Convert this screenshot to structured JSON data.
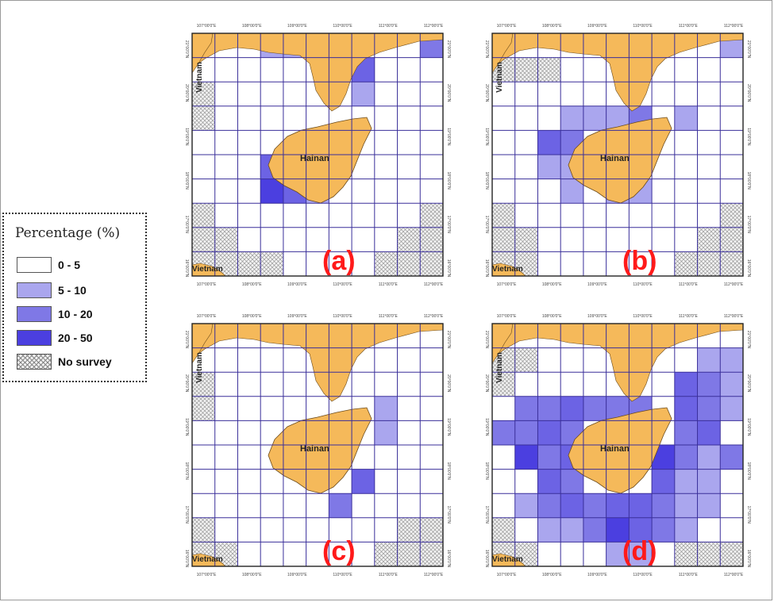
{
  "legend": {
    "title": "Percentage (%)",
    "items": [
      {
        "label": "0  -  5",
        "color": "#ffffff",
        "pattern": false
      },
      {
        "label": "5  - 10",
        "color": "#aaa6ee",
        "pattern": false
      },
      {
        "label": "10 - 20",
        "color": "#7f78e6",
        "pattern": false
      },
      {
        "label": "20 - 50",
        "color": "#4b3fe0",
        "pattern": false
      },
      {
        "label": "No survey",
        "color": "#ffffff",
        "pattern": true
      }
    ]
  },
  "colors": {
    "land": "#f5b95a",
    "grid_line": "#3a2f9a",
    "label_red": "#ff1a1a"
  },
  "place_labels": {
    "hainan": "Hainan",
    "vietnam": "Vietnam"
  },
  "tick_labels": {
    "top": [
      "107°00'0\"E",
      "108°00'0\"E",
      "109°00'0\"E",
      "110°00'0\"E",
      "111°00'0\"E",
      "112°00'0\"E"
    ],
    "side": [
      "21°00'0\"N",
      "20°00'0\"N",
      "19°00'0\"N",
      "18°00'0\"N",
      "17°00'0\"N",
      "16°00'0\"N"
    ]
  },
  "grid": {
    "rows": 10,
    "cols": 11
  },
  "panels": [
    {
      "label": "(a)",
      "cells": [
        {
          "r": 0,
          "c": 3,
          "v": 1
        },
        {
          "r": 0,
          "c": 4,
          "v": 1
        },
        {
          "r": 0,
          "c": 10,
          "v": 2
        },
        {
          "r": 1,
          "c": 7,
          "v": 3
        },
        {
          "r": 2,
          "c": 7,
          "v": 1
        },
        {
          "r": 5,
          "c": 3,
          "v": 3
        },
        {
          "r": 6,
          "c": 3,
          "v": 4
        },
        {
          "r": 6,
          "c": 4,
          "v": 3
        },
        {
          "r": 6,
          "c": 5,
          "v": 1
        },
        {
          "r": 2,
          "c": 0,
          "v": 5
        },
        {
          "r": 3,
          "c": 0,
          "v": 5
        },
        {
          "r": 7,
          "c": 0,
          "v": 5
        },
        {
          "r": 8,
          "c": 0,
          "v": 5
        },
        {
          "r": 9,
          "c": 0,
          "v": 5
        },
        {
          "r": 8,
          "c": 1,
          "v": 5
        },
        {
          "r": 9,
          "c": 1,
          "v": 5
        },
        {
          "r": 9,
          "c": 2,
          "v": 5
        },
        {
          "r": 9,
          "c": 3,
          "v": 5
        },
        {
          "r": 9,
          "c": 8,
          "v": 5
        },
        {
          "r": 8,
          "c": 9,
          "v": 5
        },
        {
          "r": 9,
          "c": 9,
          "v": 5
        },
        {
          "r": 7,
          "c": 10,
          "v": 5
        },
        {
          "r": 8,
          "c": 10,
          "v": 5
        },
        {
          "r": 9,
          "c": 10,
          "v": 5
        }
      ]
    },
    {
      "label": "(b)",
      "cells": [
        {
          "r": 0,
          "c": 10,
          "v": 1
        },
        {
          "r": 3,
          "c": 3,
          "v": 1
        },
        {
          "r": 3,
          "c": 4,
          "v": 1
        },
        {
          "r": 3,
          "c": 5,
          "v": 1
        },
        {
          "r": 4,
          "c": 2,
          "v": 3
        },
        {
          "r": 4,
          "c": 3,
          "v": 2
        },
        {
          "r": 5,
          "c": 2,
          "v": 1
        },
        {
          "r": 5,
          "c": 3,
          "v": 1
        },
        {
          "r": 6,
          "c": 3,
          "v": 1
        },
        {
          "r": 6,
          "c": 5,
          "v": 1
        },
        {
          "r": 6,
          "c": 6,
          "v": 1
        },
        {
          "r": 3,
          "c": 8,
          "v": 1
        },
        {
          "r": 3,
          "c": 6,
          "v": 2
        },
        {
          "r": 1,
          "c": 0,
          "v": 5
        },
        {
          "r": 1,
          "c": 1,
          "v": 5
        },
        {
          "r": 1,
          "c": 2,
          "v": 5
        },
        {
          "r": 7,
          "c": 0,
          "v": 5
        },
        {
          "r": 8,
          "c": 0,
          "v": 5
        },
        {
          "r": 9,
          "c": 0,
          "v": 5
        },
        {
          "r": 8,
          "c": 1,
          "v": 5
        },
        {
          "r": 9,
          "c": 1,
          "v": 5
        },
        {
          "r": 9,
          "c": 8,
          "v": 5
        },
        {
          "r": 8,
          "c": 9,
          "v": 5
        },
        {
          "r": 9,
          "c": 9,
          "v": 5
        },
        {
          "r": 7,
          "c": 10,
          "v": 5
        },
        {
          "r": 8,
          "c": 10,
          "v": 5
        },
        {
          "r": 9,
          "c": 10,
          "v": 5
        }
      ]
    },
    {
      "label": "(c)",
      "cells": [
        {
          "r": 3,
          "c": 8,
          "v": 1
        },
        {
          "r": 4,
          "c": 8,
          "v": 1
        },
        {
          "r": 6,
          "c": 7,
          "v": 3
        },
        {
          "r": 7,
          "c": 6,
          "v": 2
        },
        {
          "r": 2,
          "c": 0,
          "v": 5
        },
        {
          "r": 3,
          "c": 0,
          "v": 5
        },
        {
          "r": 8,
          "c": 0,
          "v": 5
        },
        {
          "r": 9,
          "c": 0,
          "v": 5
        },
        {
          "r": 9,
          "c": 1,
          "v": 5
        },
        {
          "r": 9,
          "c": 8,
          "v": 5
        },
        {
          "r": 8,
          "c": 9,
          "v": 5
        },
        {
          "r": 9,
          "c": 9,
          "v": 5
        },
        {
          "r": 8,
          "c": 10,
          "v": 5
        },
        {
          "r": 9,
          "c": 10,
          "v": 5
        }
      ]
    },
    {
      "label": "(d)",
      "cells": [
        {
          "r": 1,
          "c": 9,
          "v": 1
        },
        {
          "r": 1,
          "c": 10,
          "v": 1
        },
        {
          "r": 2,
          "c": 8,
          "v": 3
        },
        {
          "r": 2,
          "c": 9,
          "v": 2
        },
        {
          "r": 2,
          "c": 10,
          "v": 1
        },
        {
          "r": 3,
          "c": 1,
          "v": 2
        },
        {
          "r": 3,
          "c": 2,
          "v": 2
        },
        {
          "r": 3,
          "c": 3,
          "v": 3
        },
        {
          "r": 3,
          "c": 4,
          "v": 2
        },
        {
          "r": 3,
          "c": 5,
          "v": 2
        },
        {
          "r": 3,
          "c": 6,
          "v": 2
        },
        {
          "r": 3,
          "c": 8,
          "v": 3
        },
        {
          "r": 3,
          "c": 9,
          "v": 2
        },
        {
          "r": 3,
          "c": 10,
          "v": 1
        },
        {
          "r": 4,
          "c": 0,
          "v": 2
        },
        {
          "r": 4,
          "c": 1,
          "v": 2
        },
        {
          "r": 4,
          "c": 2,
          "v": 3
        },
        {
          "r": 4,
          "c": 3,
          "v": 2
        },
        {
          "r": 4,
          "c": 8,
          "v": 2
        },
        {
          "r": 4,
          "c": 9,
          "v": 3
        },
        {
          "r": 5,
          "c": 1,
          "v": 4
        },
        {
          "r": 5,
          "c": 2,
          "v": 2
        },
        {
          "r": 5,
          "c": 3,
          "v": 3
        },
        {
          "r": 5,
          "c": 7,
          "v": 4
        },
        {
          "r": 5,
          "c": 8,
          "v": 2
        },
        {
          "r": 5,
          "c": 9,
          "v": 1
        },
        {
          "r": 5,
          "c": 10,
          "v": 2
        },
        {
          "r": 6,
          "c": 2,
          "v": 3
        },
        {
          "r": 6,
          "c": 3,
          "v": 2
        },
        {
          "r": 6,
          "c": 7,
          "v": 3
        },
        {
          "r": 6,
          "c": 8,
          "v": 1
        },
        {
          "r": 6,
          "c": 9,
          "v": 1
        },
        {
          "r": 7,
          "c": 1,
          "v": 1
        },
        {
          "r": 7,
          "c": 2,
          "v": 2
        },
        {
          "r": 7,
          "c": 3,
          "v": 3
        },
        {
          "r": 7,
          "c": 4,
          "v": 2
        },
        {
          "r": 7,
          "c": 5,
          "v": 3
        },
        {
          "r": 7,
          "c": 6,
          "v": 3
        },
        {
          "r": 7,
          "c": 7,
          "v": 2
        },
        {
          "r": 7,
          "c": 8,
          "v": 1
        },
        {
          "r": 7,
          "c": 9,
          "v": 1
        },
        {
          "r": 8,
          "c": 2,
          "v": 1
        },
        {
          "r": 8,
          "c": 3,
          "v": 1
        },
        {
          "r": 8,
          "c": 4,
          "v": 2
        },
        {
          "r": 8,
          "c": 5,
          "v": 4
        },
        {
          "r": 8,
          "c": 6,
          "v": 3
        },
        {
          "r": 8,
          "c": 7,
          "v": 2
        },
        {
          "r": 8,
          "c": 8,
          "v": 1
        },
        {
          "r": 9,
          "c": 5,
          "v": 1
        },
        {
          "r": 9,
          "c": 6,
          "v": 1
        },
        {
          "r": 1,
          "c": 0,
          "v": 5
        },
        {
          "r": 1,
          "c": 1,
          "v": 5
        },
        {
          "r": 2,
          "c": 0,
          "v": 5
        },
        {
          "r": 8,
          "c": 0,
          "v": 5
        },
        {
          "r": 9,
          "c": 0,
          "v": 5
        },
        {
          "r": 9,
          "c": 1,
          "v": 5
        },
        {
          "r": 9,
          "c": 8,
          "v": 5
        },
        {
          "r": 9,
          "c": 9,
          "v": 5
        },
        {
          "r": 9,
          "c": 10,
          "v": 5
        }
      ]
    }
  ]
}
